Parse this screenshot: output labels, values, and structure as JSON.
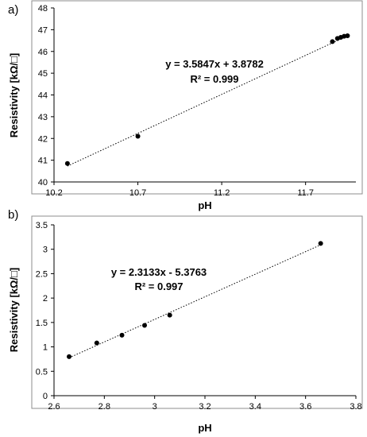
{
  "chart_data": [
    {
      "panel_label": "a)",
      "type": "scatter",
      "xlabel": "pH",
      "ylabel": "Resistivity [kΩ/□]",
      "xlim": [
        10.2,
        12.0
      ],
      "ylim": [
        40,
        48
      ],
      "xticks": [
        10.2,
        10.7,
        11.2,
        11.7
      ],
      "yticks": [
        40,
        41,
        42,
        43,
        44,
        45,
        46,
        47,
        48
      ],
      "xtick_labels": [
        "10.2",
        "10.7",
        "11.2",
        "11.7"
      ],
      "ytick_labels": [
        "40",
        "41",
        "42",
        "43",
        "44",
        "45",
        "46",
        "47",
        "48"
      ],
      "points": {
        "x": [
          10.28,
          10.7,
          11.86,
          11.89,
          11.91,
          11.93,
          11.95
        ],
        "y": [
          40.85,
          42.1,
          46.45,
          46.6,
          46.65,
          46.7,
          46.72
        ]
      },
      "trendline": {
        "slope": 3.5847,
        "intercept": 3.8782,
        "x_range": [
          10.28,
          11.95
        ]
      },
      "equation": "y = 3.5847x + 3.8782",
      "r_squared": "R² = 0.999",
      "grid": false
    },
    {
      "panel_label": "b)",
      "type": "scatter",
      "xlabel": "pH",
      "ylabel": "Resistivity [kΩ/□]",
      "xlim": [
        2.6,
        3.8
      ],
      "ylim": [
        0,
        3.5
      ],
      "xticks": [
        2.6,
        2.8,
        3.0,
        3.2,
        3.4,
        3.6,
        3.8
      ],
      "yticks": [
        0,
        0.5,
        1,
        1.5,
        2,
        2.5,
        3,
        3.5
      ],
      "xtick_labels": [
        "2.6",
        "2.8",
        "3",
        "3.2",
        "3.4",
        "3.6",
        "3.8"
      ],
      "ytick_labels": [
        "0",
        "0.5",
        "1",
        "1.5",
        "2",
        "2.5",
        "3",
        "3.5"
      ],
      "points": {
        "x": [
          2.66,
          2.77,
          2.87,
          2.96,
          3.06,
          3.66
        ],
        "y": [
          0.8,
          1.08,
          1.24,
          1.44,
          1.65,
          3.12
        ]
      },
      "trendline": {
        "slope": 2.3133,
        "intercept": -5.3763,
        "x_range": [
          2.66,
          3.66
        ]
      },
      "equation": "y = 2.3133x - 5.3763",
      "r_squared": "R² = 0.997",
      "grid": false
    }
  ]
}
